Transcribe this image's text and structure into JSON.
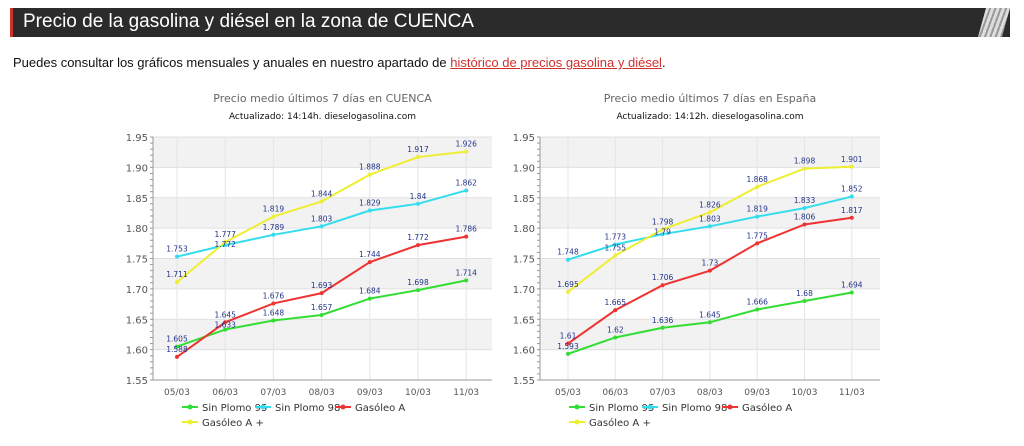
{
  "header": {
    "title": "Precio de la gasolina y diésel en la zona de CUENCA"
  },
  "intro": {
    "text": "Puedes consultar los gráficos mensuales y anuales en nuestro apartado de ",
    "link": "histórico de precios gasolina y diésel",
    "end": "."
  },
  "chart_data": [
    {
      "type": "line",
      "title": "Precio medio últimos 7 días en CUENCA",
      "subtitle": "Actualizado: 14:14h. dieselogasolina.com",
      "categories": [
        "05/03",
        "06/03",
        "07/03",
        "08/03",
        "09/03",
        "10/03",
        "11/03"
      ],
      "ylim": [
        1.55,
        1.95
      ],
      "yticks": [
        "1.55",
        "1.60",
        "1.65",
        "1.70",
        "1.75",
        "1.80",
        "1.85",
        "1.90",
        "1.95"
      ],
      "legend": "bottom",
      "series": [
        {
          "name": "Sin Plomo 95",
          "color": "#33dd33",
          "values": [
            1.605,
            1.633,
            1.648,
            1.657,
            1.684,
            1.698,
            1.714
          ]
        },
        {
          "name": "Sin Plomo 98",
          "color": "#33ddee",
          "values": [
            1.753,
            1.772,
            1.789,
            1.803,
            1.829,
            1.84,
            1.862
          ]
        },
        {
          "name": "Gasóleo A",
          "color": "#ee3333",
          "values": [
            1.588,
            1.645,
            1.676,
            1.693,
            1.744,
            1.772,
            1.786
          ]
        },
        {
          "name": "Gasóleo A +",
          "color": "#eeee33",
          "values": [
            1.711,
            1.777,
            1.819,
            1.844,
            1.888,
            1.917,
            1.926
          ]
        }
      ]
    },
    {
      "type": "line",
      "title": "Precio medio últimos 7 días en España",
      "subtitle": "Actualizado: 14:12h. dieselogasolina.com",
      "categories": [
        "05/03",
        "06/03",
        "07/03",
        "08/03",
        "09/03",
        "10/03",
        "11/03"
      ],
      "ylim": [
        1.55,
        1.95
      ],
      "yticks": [
        "1.55",
        "1.60",
        "1.65",
        "1.70",
        "1.75",
        "1.80",
        "1.85",
        "1.90",
        "1.95"
      ],
      "legend": "bottom",
      "series": [
        {
          "name": "Sin Plomo 95",
          "color": "#33dd33",
          "values": [
            1.593,
            1.62,
            1.636,
            1.645,
            1.666,
            1.68,
            1.694
          ]
        },
        {
          "name": "Sin Plomo 98",
          "color": "#33ddee",
          "values": [
            1.748,
            1.773,
            1.79,
            1.803,
            1.819,
            1.833,
            1.852
          ]
        },
        {
          "name": "Gasóleo A",
          "color": "#ee3333",
          "values": [
            1.61,
            1.665,
            1.706,
            1.73,
            1.775,
            1.806,
            1.817
          ]
        },
        {
          "name": "Gasóleo A +",
          "color": "#eeee33",
          "values": [
            1.695,
            1.755,
            1.798,
            1.826,
            1.868,
            1.898,
            1.901
          ]
        }
      ]
    }
  ]
}
